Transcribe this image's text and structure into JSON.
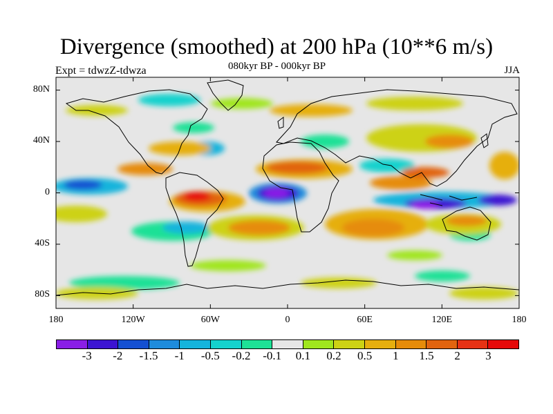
{
  "title": "Divergence (smoothed) at 200 hPa (10**6 m/s)",
  "subtitle": "080kyr BP - 000kyr BP",
  "experiment_label": "Expt = tdwzZ-tdwza",
  "season": "JJA",
  "map": {
    "projection": "cylindrical-equidistant",
    "lon_range": [
      -180,
      180
    ],
    "lat_range": [
      -90,
      90
    ],
    "lat_ticks": [
      "80N",
      "40N",
      "0",
      "40S",
      "80S"
    ],
    "lon_ticks": [
      "180",
      "120W",
      "60W",
      "0",
      "60E",
      "120E",
      "180"
    ],
    "missing_color": "#e6e6e6",
    "coastlines": "black"
  },
  "colorbar": {
    "colors": [
      "#8a1ee6",
      "#3c14d2",
      "#1450d2",
      "#1e8cdc",
      "#14b4dc",
      "#14d2cd",
      "#1ee196",
      "#e6e6e6",
      "#a0e61e",
      "#cdd214",
      "#e6af0f",
      "#e68c0a",
      "#e1640f",
      "#e63214",
      "#e60a0a"
    ],
    "labels": [
      "-3",
      "-2",
      "-1.5",
      "-1",
      "-0.5",
      "-0.2",
      "-0.1",
      "0.1",
      "0.2",
      "0.5",
      "1",
      "1.5",
      "2",
      "3"
    ]
  },
  "field_features": [
    {
      "name": "strong convergence W Africa / Gulf of Guinea",
      "lon": -5,
      "lat": 2,
      "value": -3
    },
    {
      "name": "strong convergence Indonesia / W Pacific",
      "lon": 118,
      "lat": -5,
      "value": -2.5
    },
    {
      "name": "convergence central Pacific equator",
      "lon": -150,
      "lat": 5,
      "value": -1.5
    },
    {
      "name": "strong divergence N South America / Amazon",
      "lon": -65,
      "lat": -3,
      "value": 3
    },
    {
      "name": "divergence N Africa Sahel band",
      "lon": 10,
      "lat": 15,
      "value": 1.5
    },
    {
      "name": "divergence South Atlantic",
      "lon": -20,
      "lat": -25,
      "value": 1.2
    },
    {
      "name": "divergence Indian Ocean south",
      "lon": 70,
      "lat": -22,
      "value": 1.3
    },
    {
      "name": "divergence Asian monsoon region",
      "lon": 85,
      "lat": 32,
      "value": 1
    }
  ]
}
